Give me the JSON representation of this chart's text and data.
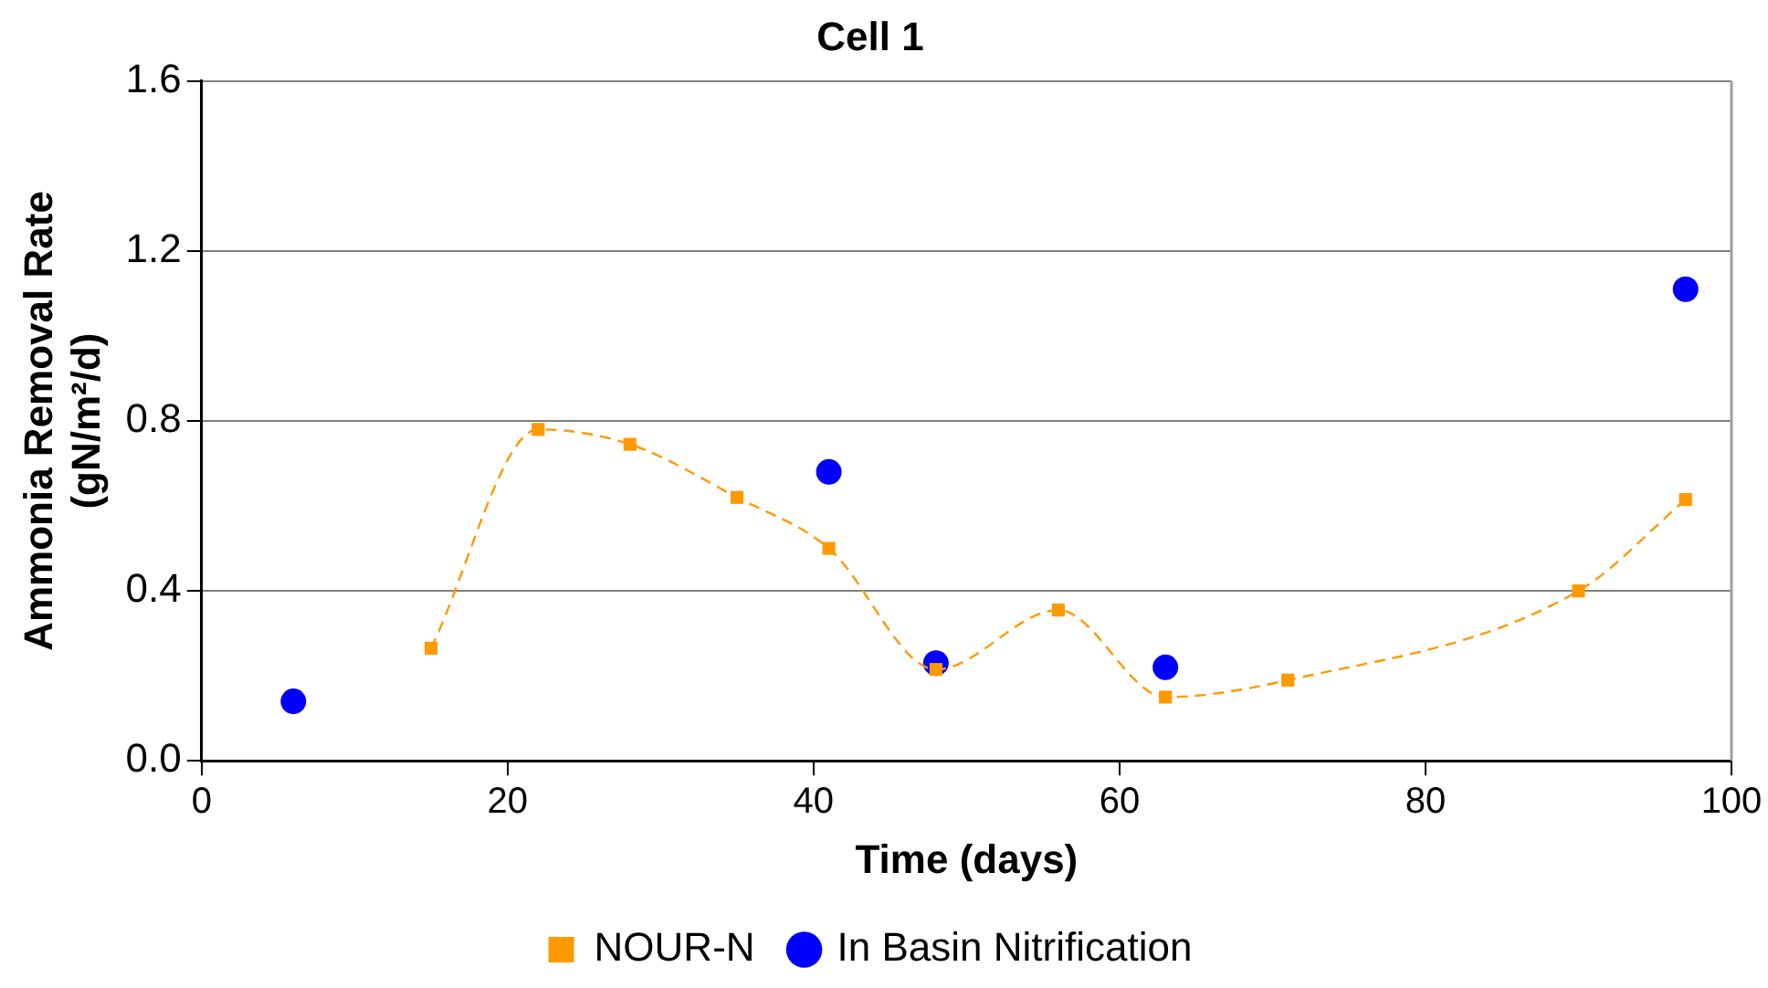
{
  "chart_data": {
    "type": "scatter",
    "title": "Cell 1",
    "xlabel": "Time (days)",
    "ylabel": "Ammonia Removal Rate (gN/m²/d)",
    "xlim": [
      0,
      100
    ],
    "xticks": [
      0,
      20,
      40,
      60,
      80,
      100
    ],
    "ylim": [
      0,
      1.6
    ],
    "yticks": [
      {
        "value": 0,
        "label": "0.0"
      },
      {
        "value": 0.4,
        "label": "0.4"
      },
      {
        "value": 0.8,
        "label": "0.8"
      },
      {
        "value": 1.2,
        "label": "1.2"
      },
      {
        "value": 1.6,
        "label": "1.6"
      }
    ],
    "grid": "y",
    "legend": "bottom",
    "series": [
      {
        "name": "In Basin Nitrification",
        "marker": "circle",
        "color": "#0000ff",
        "x": [
          6,
          41,
          48,
          63,
          97
        ],
        "values": [
          0.14,
          0.68,
          0.23,
          0.22,
          1.11
        ]
      },
      {
        "name": "NOUR-N",
        "type": "line",
        "marker": "square",
        "line_style": "dashed",
        "color": "#ff9900",
        "x": [
          15,
          22,
          28,
          35,
          41,
          48,
          56,
          63,
          71,
          90,
          97
        ],
        "values": [
          0.265,
          0.78,
          0.745,
          0.62,
          0.5,
          0.215,
          0.355,
          0.15,
          0.19,
          0.4,
          0.615
        ]
      }
    ]
  }
}
